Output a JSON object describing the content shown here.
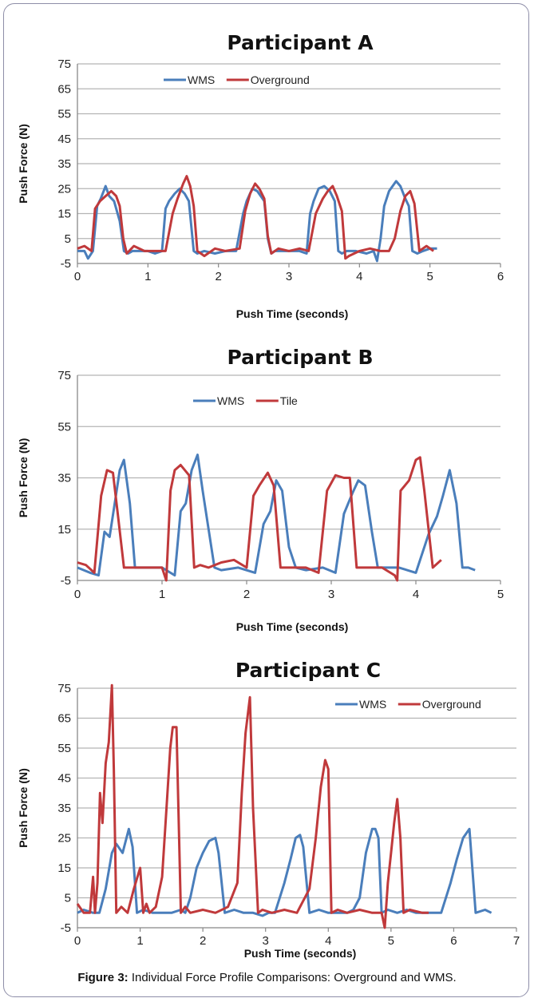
{
  "caption": {
    "label": "Figure 3:",
    "text": " Individual Force Profile Comparisons: Overground and WMS."
  },
  "colors": {
    "wms": "#4a7ebb",
    "other": "#c0393b",
    "grid": "#b4b4b4",
    "axis": "#888888"
  },
  "chart_data": [
    {
      "type": "line",
      "title": "Participant A",
      "xlabel": "Push Time (seconds)",
      "ylabel": "Push Force (N)",
      "xlim": [
        0,
        6
      ],
      "ylim": [
        -5,
        75
      ],
      "xticks": [
        0,
        1,
        2,
        3,
        4,
        5,
        6
      ],
      "yticks": [
        -5,
        5,
        15,
        25,
        35,
        45,
        55,
        65,
        75
      ],
      "grid": true,
      "legend": "top-center",
      "series": [
        {
          "name": "WMS",
          "color": "#4a7ebb",
          "x": [
            0,
            0.1,
            0.15,
            0.22,
            0.28,
            0.33,
            0.4,
            0.45,
            0.52,
            0.6,
            0.66,
            0.72,
            0.78,
            0.9,
            1.0,
            1.1,
            1.2,
            1.25,
            1.3,
            1.38,
            1.45,
            1.52,
            1.58,
            1.65,
            1.7,
            1.8,
            1.95,
            2.1,
            2.25,
            2.35,
            2.4,
            2.48,
            2.55,
            2.6,
            2.65,
            2.7,
            2.75,
            2.8,
            2.92,
            3.05,
            3.15,
            3.25,
            3.3,
            3.35,
            3.42,
            3.5,
            3.58,
            3.65,
            3.7,
            3.75,
            3.82,
            3.95,
            4.1,
            4.2,
            4.25,
            4.3,
            4.35,
            4.42,
            4.52,
            4.58,
            4.65,
            4.7,
            4.75,
            4.82,
            4.9,
            5.0,
            5.1
          ],
          "y": [
            0,
            0,
            -3,
            0,
            18,
            21,
            26,
            22,
            20,
            12,
            0,
            -1,
            0,
            0,
            0,
            -1,
            0,
            17,
            20,
            23,
            25,
            23,
            20,
            0,
            -1,
            0,
            -1,
            0,
            0,
            15,
            20,
            25,
            24,
            22,
            20,
            5,
            -1,
            0,
            0,
            0,
            0,
            -1,
            15,
            20,
            25,
            26,
            24,
            20,
            0,
            -1,
            0,
            0,
            -1,
            0,
            -4,
            5,
            18,
            24,
            28,
            26,
            21,
            18,
            0,
            -1,
            0,
            1,
            1
          ]
        },
        {
          "name": "Overground",
          "color": "#c0393b",
          "x": [
            0,
            0.1,
            0.2,
            0.25,
            0.32,
            0.4,
            0.48,
            0.55,
            0.6,
            0.65,
            0.7,
            0.8,
            0.95,
            1.1,
            1.25,
            1.35,
            1.42,
            1.5,
            1.55,
            1.6,
            1.65,
            1.7,
            1.8,
            1.95,
            2.1,
            2.3,
            2.38,
            2.45,
            2.52,
            2.58,
            2.65,
            2.7,
            2.75,
            2.85,
            3.0,
            3.15,
            3.28,
            3.38,
            3.48,
            3.55,
            3.62,
            3.68,
            3.75,
            3.8,
            3.85,
            4.0,
            4.15,
            4.3,
            4.42,
            4.5,
            4.58,
            4.65,
            4.72,
            4.78,
            4.85,
            4.95,
            5.05
          ],
          "y": [
            1,
            2,
            0,
            17,
            20,
            22,
            24,
            22,
            18,
            5,
            -1,
            2,
            0,
            0,
            0,
            15,
            21,
            27,
            30,
            26,
            18,
            0,
            -2,
            1,
            0,
            1,
            16,
            23,
            27,
            25,
            21,
            6,
            -1,
            1,
            0,
            1,
            0,
            15,
            21,
            24,
            26,
            22,
            16,
            -3,
            -2,
            0,
            1,
            0,
            0,
            5,
            16,
            22,
            24,
            19,
            0,
            2,
            0
          ]
        }
      ]
    },
    {
      "type": "line",
      "title": "Participant B",
      "xlabel": "Push Time (seconds)",
      "ylabel": "Push Force (N)",
      "xlim": [
        0,
        5
      ],
      "ylim": [
        -5,
        75
      ],
      "xticks": [
        0,
        1,
        2,
        3,
        4,
        5
      ],
      "yticks": [
        -5,
        15,
        35,
        55,
        75
      ],
      "grid": true,
      "legend": "top-center",
      "series": [
        {
          "name": "WMS",
          "color": "#4a7ebb",
          "x": [
            0,
            0.15,
            0.25,
            0.32,
            0.38,
            0.45,
            0.5,
            0.55,
            0.62,
            0.68,
            0.8,
            1.0,
            1.15,
            1.22,
            1.28,
            1.35,
            1.42,
            1.48,
            1.55,
            1.62,
            1.7,
            1.9,
            2.1,
            2.2,
            2.28,
            2.35,
            2.42,
            2.5,
            2.58,
            2.7,
            2.9,
            3.05,
            3.15,
            3.25,
            3.32,
            3.4,
            3.48,
            3.55,
            3.62,
            3.8,
            4.0,
            4.15,
            4.25,
            4.32,
            4.4,
            4.48,
            4.55,
            4.62,
            4.7
          ],
          "y": [
            0,
            -2,
            -3,
            14,
            12,
            27,
            38,
            42,
            25,
            0,
            0,
            0,
            -3,
            22,
            25,
            38,
            44,
            30,
            15,
            0,
            -1,
            0,
            -2,
            17,
            22,
            34,
            30,
            8,
            0,
            -1,
            0,
            -2,
            21,
            29,
            34,
            32,
            14,
            0,
            0,
            0,
            -2,
            13,
            20,
            28,
            38,
            25,
            0,
            0,
            -1
          ]
        },
        {
          "name": "Tile",
          "color": "#c0393b",
          "x": [
            0,
            0.1,
            0.2,
            0.28,
            0.35,
            0.42,
            0.48,
            0.55,
            0.65,
            0.8,
            1.0,
            1.05,
            1.1,
            1.15,
            1.22,
            1.32,
            1.38,
            1.45,
            1.55,
            1.7,
            1.85,
            2.0,
            2.08,
            2.15,
            2.25,
            2.32,
            2.4,
            2.5,
            2.7,
            2.85,
            2.95,
            3.05,
            3.15,
            3.22,
            3.3,
            3.45,
            3.6,
            3.75,
            3.78,
            3.82,
            3.92,
            4.0,
            4.05,
            4.1,
            4.2,
            4.3
          ],
          "y": [
            2,
            1,
            -2,
            28,
            38,
            37,
            20,
            0,
            0,
            0,
            0,
            -5,
            30,
            38,
            40,
            36,
            0,
            1,
            0,
            2,
            3,
            0,
            28,
            32,
            37,
            32,
            0,
            0,
            0,
            -2,
            30,
            36,
            35,
            35,
            0,
            0,
            0,
            -3,
            -5,
            30,
            34,
            42,
            43,
            30,
            0,
            3
          ]
        }
      ]
    },
    {
      "type": "line",
      "title": "Participant C",
      "xlabel": "Push Time (seconds)",
      "ylabel": "Push Force (N)",
      "xlim": [
        0,
        7
      ],
      "ylim": [
        -5,
        75
      ],
      "xticks": [
        0,
        1,
        2,
        3,
        4,
        5,
        6,
        7
      ],
      "yticks": [
        -5,
        5,
        15,
        25,
        35,
        45,
        55,
        65,
        75
      ],
      "grid": true,
      "legend": "top-right",
      "series": [
        {
          "name": "WMS",
          "color": "#4a7ebb",
          "x": [
            0,
            0.1,
            0.25,
            0.35,
            0.45,
            0.55,
            0.62,
            0.72,
            0.82,
            0.88,
            0.95,
            1.05,
            1.2,
            1.35,
            1.5,
            1.65,
            1.72,
            1.8,
            1.9,
            2.0,
            2.1,
            2.2,
            2.25,
            2.35,
            2.5,
            2.65,
            2.8,
            2.95,
            3.05,
            3.15,
            3.3,
            3.4,
            3.48,
            3.55,
            3.6,
            3.7,
            3.85,
            4.0,
            4.15,
            4.3,
            4.4,
            4.5,
            4.6,
            4.7,
            4.75,
            4.8,
            4.85,
            4.95,
            5.1,
            5.25,
            5.4,
            5.55,
            5.65,
            5.8,
            5.95,
            6.05,
            6.15,
            6.25,
            6.35,
            6.5,
            6.6
          ],
          "y": [
            0,
            1,
            0,
            0,
            8,
            20,
            23,
            20,
            28,
            22,
            0,
            1,
            0,
            0,
            0,
            1,
            0,
            5,
            15,
            20,
            24,
            25,
            20,
            0,
            1,
            0,
            0,
            -1,
            0,
            0,
            10,
            18,
            25,
            26,
            22,
            0,
            1,
            0,
            0,
            0,
            1,
            5,
            20,
            28,
            28,
            25,
            0,
            1,
            0,
            1,
            0,
            0,
            0,
            0,
            10,
            18,
            25,
            28,
            0,
            1,
            0
          ]
        },
        {
          "name": "Overground",
          "color": "#c0393b",
          "x": [
            0,
            0.1,
            0.2,
            0.25,
            0.28,
            0.32,
            0.36,
            0.4,
            0.45,
            0.5,
            0.55,
            0.58,
            0.62,
            0.7,
            0.8,
            0.9,
            1.0,
            1.05,
            1.1,
            1.15,
            1.25,
            1.35,
            1.42,
            1.48,
            1.52,
            1.58,
            1.65,
            1.72,
            1.8,
            2.0,
            2.2,
            2.4,
            2.55,
            2.62,
            2.68,
            2.75,
            2.8,
            2.88,
            2.95,
            3.1,
            3.3,
            3.5,
            3.7,
            3.8,
            3.88,
            3.95,
            4.0,
            4.05,
            4.15,
            4.3,
            4.5,
            4.7,
            4.85,
            4.9,
            4.95,
            5.0,
            5.05,
            5.1,
            5.15,
            5.2,
            5.3,
            5.5,
            5.6
          ],
          "y": [
            3,
            0,
            0,
            12,
            0,
            10,
            40,
            30,
            50,
            57,
            76,
            48,
            0,
            2,
            0,
            8,
            15,
            0,
            3,
            0,
            2,
            12,
            35,
            55,
            62,
            62,
            0,
            2,
            0,
            1,
            0,
            2,
            10,
            40,
            60,
            72,
            35,
            0,
            1,
            0,
            1,
            0,
            8,
            25,
            42,
            51,
            48,
            0,
            1,
            0,
            1,
            0,
            0,
            -5,
            10,
            20,
            30,
            38,
            25,
            0,
            1,
            0,
            0
          ]
        }
      ]
    }
  ]
}
